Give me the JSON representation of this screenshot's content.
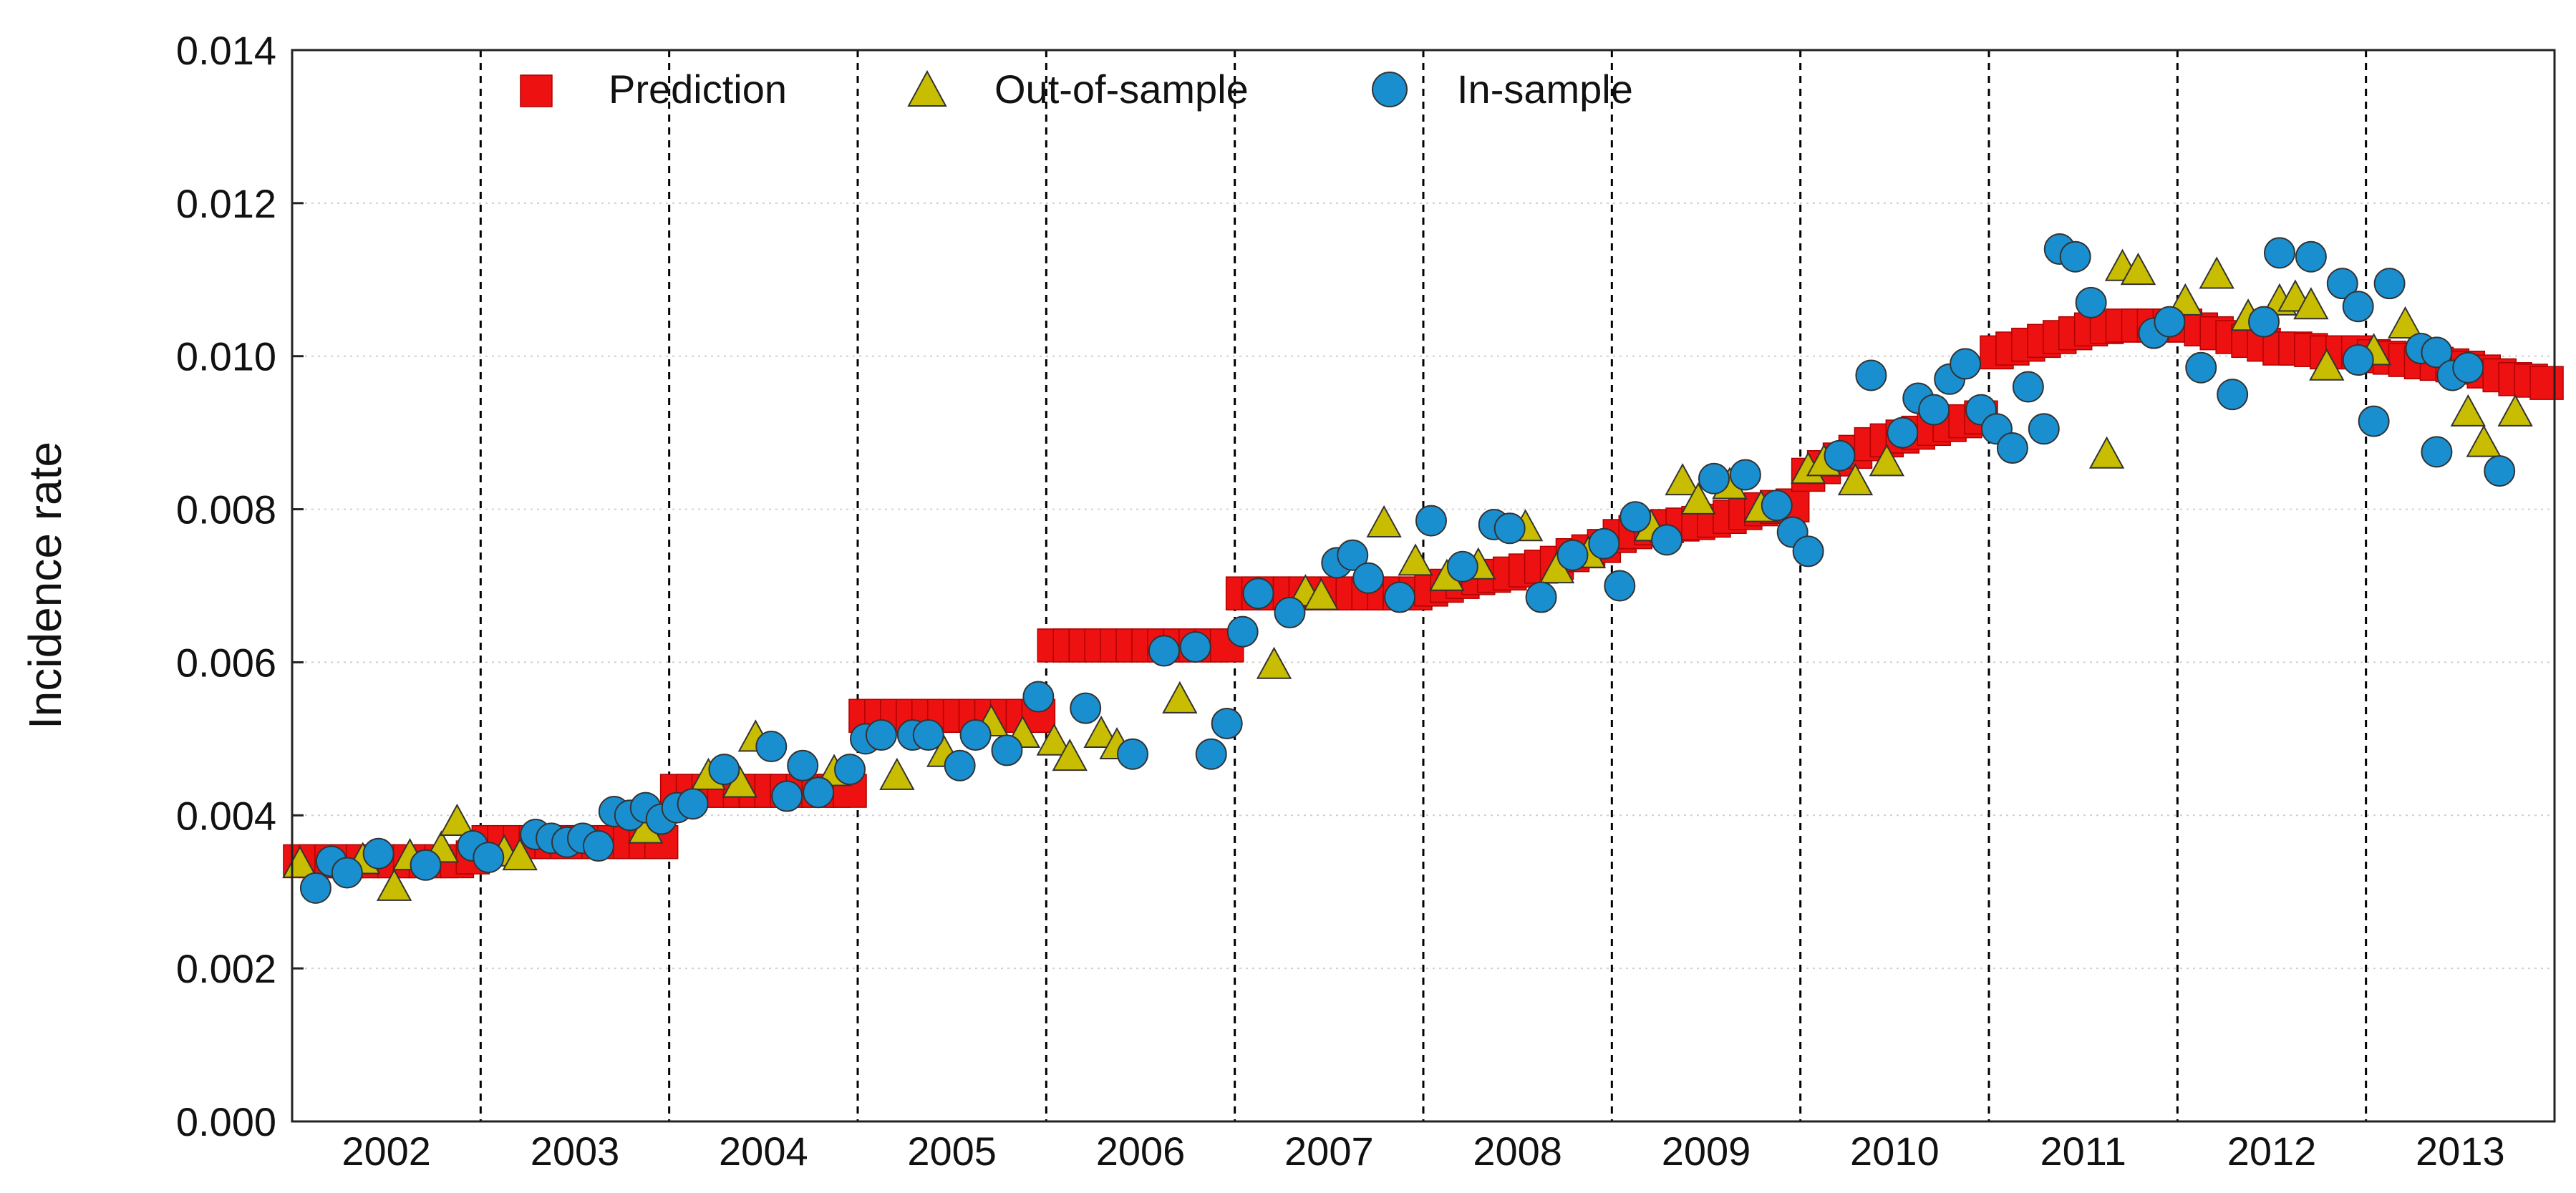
{
  "chart_data": {
    "type": "scatter",
    "title": "",
    "xlabel": "",
    "ylabel": "Incidence rate",
    "ylim": [
      0,
      0.014
    ],
    "yticks": [
      "0.000",
      "0.002",
      "0.004",
      "0.006",
      "0.008",
      "0.010",
      "0.012",
      "0.014"
    ],
    "grid": "horizontal-dotted",
    "legend_position": "top-left",
    "x_unit": "month",
    "x_range": [
      0,
      144
    ],
    "years": [
      "2002",
      "2003",
      "2004",
      "2005",
      "2006",
      "2007",
      "2008",
      "2009",
      "2010",
      "2011",
      "2012",
      "2013"
    ],
    "year_boundaries": [
      0,
      12,
      24,
      36,
      48,
      60,
      72,
      84,
      96,
      108,
      120,
      132,
      144
    ],
    "colors": {
      "prediction": "#ee1111",
      "out_of_sample": "#c8bd00",
      "in_sample": "#1a8fd0",
      "edge": "#333333",
      "divider": "#000000",
      "grid": "#d0d0d0"
    },
    "series": [
      {
        "name": "Prediction",
        "marker": "square",
        "values": [
          0.0034,
          0.0034,
          0.0034,
          0.0034,
          0.0034,
          0.0034,
          0.0034,
          0.0034,
          0.0034,
          0.0034,
          0.0034,
          0.00345,
          0.00365,
          0.00365,
          0.00365,
          0.00365,
          0.00365,
          0.00365,
          0.00365,
          0.00365,
          0.00365,
          0.00365,
          0.00365,
          0.00365,
          0.00432,
          0.00432,
          0.00432,
          0.00432,
          0.00432,
          0.00432,
          0.00432,
          0.00432,
          0.00432,
          0.00432,
          0.00432,
          0.00432,
          0.0053,
          0.0053,
          0.0053,
          0.0053,
          0.0053,
          0.0053,
          0.0053,
          0.0053,
          0.0053,
          0.0053,
          0.0053,
          0.0053,
          0.00622,
          0.00622,
          0.00622,
          0.00622,
          0.00622,
          0.00622,
          0.00622,
          0.00622,
          0.00622,
          0.00622,
          0.00622,
          0.00622,
          0.0069,
          0.0069,
          0.0069,
          0.0069,
          0.0069,
          0.0069,
          0.0069,
          0.0069,
          0.0069,
          0.0069,
          0.0069,
          0.0069,
          0.00695,
          0.007,
          0.00705,
          0.0071,
          0.00713,
          0.00716,
          0.0072,
          0.00725,
          0.0073,
          0.0074,
          0.00745,
          0.00752,
          0.00765,
          0.0077,
          0.00775,
          0.00778,
          0.0078,
          0.00782,
          0.00785,
          0.0079,
          0.00795,
          0.008,
          0.00803,
          0.00805,
          0.00845,
          0.00855,
          0.00865,
          0.00875,
          0.00885,
          0.0089,
          0.00895,
          0.009,
          0.00905,
          0.0091,
          0.00915,
          0.0092,
          0.01005,
          0.0101,
          0.01015,
          0.0102,
          0.01025,
          0.0103,
          0.01035,
          0.01038,
          0.0104,
          0.0104,
          0.0104,
          0.0104,
          0.0104,
          0.01035,
          0.0103,
          0.01025,
          0.0102,
          0.01015,
          0.0101,
          0.0101,
          0.01008,
          0.01005,
          0.01005,
          0.01005,
          0.01,
          0.00998,
          0.00995,
          0.00992,
          0.0099,
          0.00988,
          0.00985,
          0.0098,
          0.00975,
          0.0097,
          0.00968,
          0.00965
        ]
      },
      {
        "name": "Out-of-sample",
        "marker": "triangle",
        "points": [
          [
            0,
            0.00335
          ],
          [
            4,
            0.0034
          ],
          [
            6,
            0.00305
          ],
          [
            7,
            0.00345
          ],
          [
            9,
            0.00355
          ],
          [
            10,
            0.0039
          ],
          [
            13,
            0.0035
          ],
          [
            14,
            0.00345
          ],
          [
            22,
            0.0038
          ],
          [
            26,
            0.0045
          ],
          [
            28,
            0.0044
          ],
          [
            29,
            0.005
          ],
          [
            34,
            0.00455
          ],
          [
            38,
            0.0045
          ],
          [
            41,
            0.0048
          ],
          [
            44,
            0.0052
          ],
          [
            46,
            0.00505
          ],
          [
            48,
            0.00495
          ],
          [
            49,
            0.00475
          ],
          [
            51,
            0.00505
          ],
          [
            52,
            0.0049
          ],
          [
            56,
            0.0055
          ],
          [
            62,
            0.00595
          ],
          [
            64,
            0.0069
          ],
          [
            65,
            0.00685
          ],
          [
            69,
            0.0078
          ],
          [
            71,
            0.0073
          ],
          [
            73,
            0.0071
          ],
          [
            75,
            0.00725
          ],
          [
            78,
            0.00775
          ],
          [
            80,
            0.0072
          ],
          [
            82,
            0.0074
          ],
          [
            86,
            0.00775
          ],
          [
            88,
            0.00835
          ],
          [
            89,
            0.0081
          ],
          [
            91,
            0.0083
          ],
          [
            93,
            0.008
          ],
          [
            96,
            0.0085
          ],
          [
            97,
            0.0086
          ],
          [
            99,
            0.00835
          ],
          [
            101,
            0.0086
          ],
          [
            115,
            0.0087
          ],
          [
            116,
            0.01115
          ],
          [
            117,
            0.0111
          ],
          [
            120,
            0.0107
          ],
          [
            122,
            0.01105
          ],
          [
            124,
            0.0105
          ],
          [
            126,
            0.0107
          ],
          [
            127,
            0.01075
          ],
          [
            128,
            0.01065
          ],
          [
            129,
            0.00985
          ],
          [
            132,
            0.01005
          ],
          [
            134,
            0.0104
          ],
          [
            138,
            0.00925
          ],
          [
            139,
            0.00885
          ],
          [
            141,
            0.00925
          ]
        ]
      },
      {
        "name": "In-sample",
        "marker": "circle",
        "points": [
          [
            1,
            0.00305
          ],
          [
            2,
            0.0034
          ],
          [
            3,
            0.00325
          ],
          [
            5,
            0.0035
          ],
          [
            8,
            0.00335
          ],
          [
            11,
            0.0036
          ],
          [
            12,
            0.00345
          ],
          [
            15,
            0.00375
          ],
          [
            16,
            0.0037
          ],
          [
            17,
            0.00365
          ],
          [
            18,
            0.0037
          ],
          [
            19,
            0.0036
          ],
          [
            20,
            0.00405
          ],
          [
            21,
            0.004
          ],
          [
            22,
            0.0041
          ],
          [
            23,
            0.00395
          ],
          [
            24,
            0.0041
          ],
          [
            25,
            0.00415
          ],
          [
            27,
            0.0046
          ],
          [
            30,
            0.0049
          ],
          [
            31,
            0.00425
          ],
          [
            32,
            0.00465
          ],
          [
            33,
            0.0043
          ],
          [
            35,
            0.0046
          ],
          [
            36,
            0.005
          ],
          [
            37,
            0.00505
          ],
          [
            39,
            0.00505
          ],
          [
            40,
            0.00505
          ],
          [
            42,
            0.00465
          ],
          [
            43,
            0.00505
          ],
          [
            45,
            0.00485
          ],
          [
            47,
            0.00555
          ],
          [
            50,
            0.0054
          ],
          [
            53,
            0.0048
          ],
          [
            55,
            0.00615
          ],
          [
            57,
            0.0062
          ],
          [
            58,
            0.0048
          ],
          [
            59,
            0.0052
          ],
          [
            60,
            0.0064
          ],
          [
            61,
            0.0069
          ],
          [
            63,
            0.00665
          ],
          [
            66,
            0.0073
          ],
          [
            67,
            0.0074
          ],
          [
            68,
            0.0071
          ],
          [
            70,
            0.00685
          ],
          [
            72,
            0.00785
          ],
          [
            74,
            0.00725
          ],
          [
            76,
            0.0078
          ],
          [
            77,
            0.00775
          ],
          [
            79,
            0.00685
          ],
          [
            81,
            0.0074
          ],
          [
            83,
            0.00755
          ],
          [
            84,
            0.007
          ],
          [
            85,
            0.0079
          ],
          [
            87,
            0.0076
          ],
          [
            90,
            0.0084
          ],
          [
            92,
            0.00845
          ],
          [
            94,
            0.00805
          ],
          [
            95,
            0.0077
          ],
          [
            96,
            0.00745
          ],
          [
            98,
            0.0087
          ],
          [
            100,
            0.00975
          ],
          [
            102,
            0.009
          ],
          [
            103,
            0.00945
          ],
          [
            104,
            0.0093
          ],
          [
            105,
            0.0097
          ],
          [
            106,
            0.0099
          ],
          [
            107,
            0.0093
          ],
          [
            108,
            0.00905
          ],
          [
            109,
            0.0088
          ],
          [
            110,
            0.0096
          ],
          [
            111,
            0.00905
          ],
          [
            112,
            0.0114
          ],
          [
            113,
            0.0113
          ],
          [
            114,
            0.0107
          ],
          [
            118,
            0.0103
          ],
          [
            119,
            0.01045
          ],
          [
            121,
            0.00985
          ],
          [
            123,
            0.0095
          ],
          [
            125,
            0.01045
          ],
          [
            126,
            0.01135
          ],
          [
            128,
            0.0113
          ],
          [
            130,
            0.01095
          ],
          [
            131,
            0.01065
          ],
          [
            131,
            0.00995
          ],
          [
            132,
            0.00915
          ],
          [
            133,
            0.01095
          ],
          [
            135,
            0.0101
          ],
          [
            136,
            0.01005
          ],
          [
            136,
            0.00875
          ],
          [
            137,
            0.00975
          ],
          [
            138,
            0.00985
          ],
          [
            140,
            0.0085
          ]
        ]
      }
    ]
  }
}
